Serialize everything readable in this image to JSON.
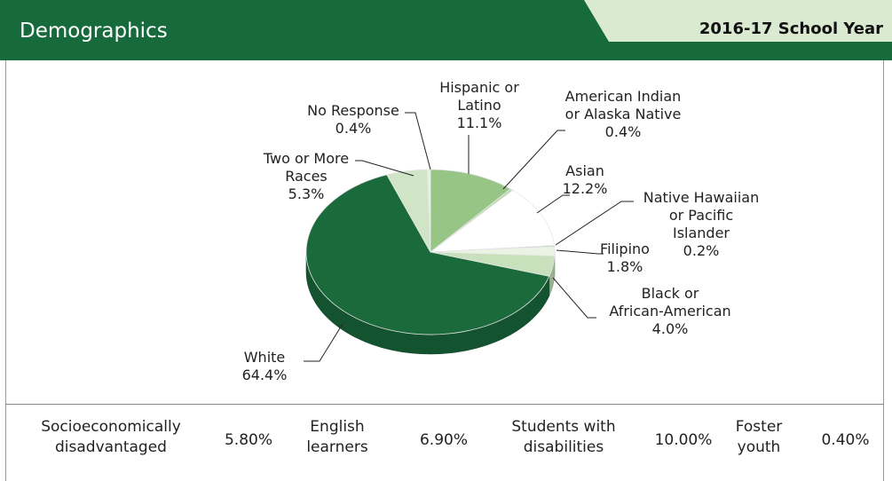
{
  "header": {
    "title": "Demographics",
    "year": "2016-17 School Year",
    "colors": {
      "primary": "#176a3c",
      "tab": "#d9ead0"
    }
  },
  "chart_data": {
    "type": "pie",
    "slices": [
      {
        "label": "Hispanic or Latino",
        "value": 11.1,
        "display": "11.1%",
        "color": "#96c585"
      },
      {
        "label": "American Indian or Alaska Native",
        "value": 0.4,
        "display": "0.4%",
        "color": "#b7d8ac"
      },
      {
        "label": "Asian",
        "value": 12.2,
        "display": "12.2%",
        "color": "#ffffff"
      },
      {
        "label": "Native Hawaiian or Pacific Islander",
        "value": 0.2,
        "display": "0.2%",
        "color": "#76a891"
      },
      {
        "label": "Filipino",
        "value": 1.8,
        "display": "1.8%",
        "color": "#eaf4e4"
      },
      {
        "label": "Black or African-American",
        "value": 4.0,
        "display": "4.0%",
        "color": "#c8e0bc"
      },
      {
        "label": "White",
        "value": 64.4,
        "display": "64.4%",
        "color": "#1a6a3c"
      },
      {
        "label": "Two or More Races",
        "value": 5.3,
        "display": "5.3%",
        "color": "#cfe5c6"
      },
      {
        "label": "No Response",
        "value": 0.4,
        "display": "0.4%",
        "color": "#e8f3e2"
      }
    ]
  },
  "stats": [
    {
      "label": "Socioeconomically disadvantaged",
      "value": "5.80%"
    },
    {
      "label": "English learners",
      "value": "6.90%"
    },
    {
      "label": "Students with disabilities",
      "value": "10.00%"
    },
    {
      "label": "Foster youth",
      "value": "0.40%"
    }
  ]
}
